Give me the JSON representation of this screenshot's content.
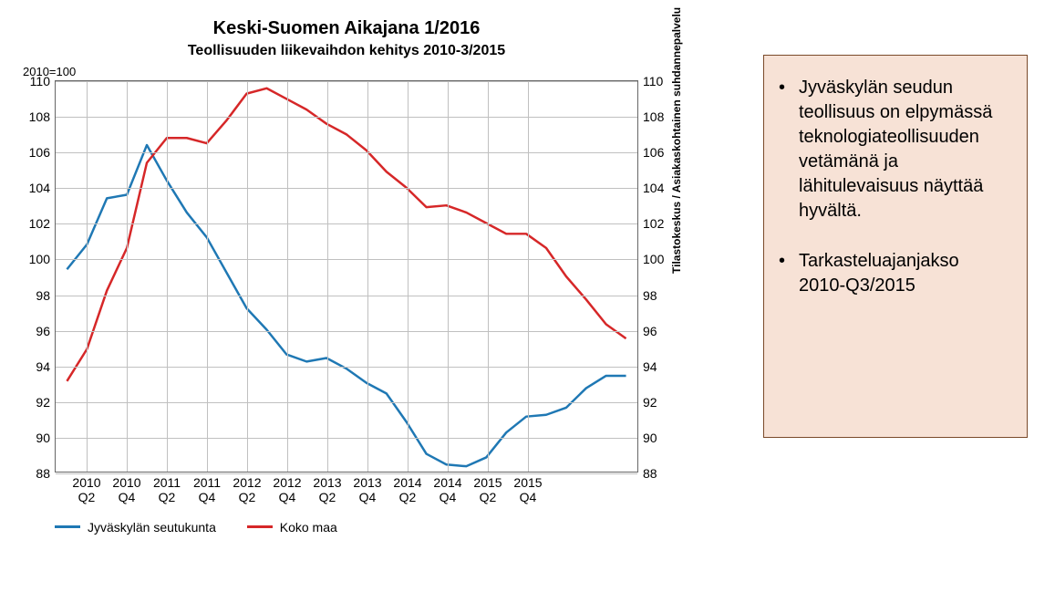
{
  "chart": {
    "title_main": "Keski-Suomen Aikajana 1/2016",
    "title_sub": "Teollisuuden liikevaihdon kehitys 2010-3/2015",
    "baseline_label": "2010=100",
    "type": "line",
    "title_fontsize": 20,
    "subtitle_fontsize": 16,
    "label_fontsize": 14,
    "background_color": "#ffffff",
    "grid_color": "#c0c0c0",
    "border_color": "#666666",
    "ylim": [
      88,
      110
    ],
    "ytick_step": 2,
    "yticks": [
      88,
      90,
      92,
      94,
      96,
      98,
      100,
      102,
      104,
      106,
      108,
      110
    ],
    "xticks": [
      "2010\nQ2",
      "2010\nQ4",
      "2011\nQ2",
      "2011\nQ4",
      "2012\nQ2",
      "2012\nQ4",
      "2013\nQ2",
      "2013\nQ4",
      "2014\nQ2",
      "2014\nQ4",
      "2015\nQ2",
      "2015\nQ4"
    ],
    "x_indices": [
      1,
      3,
      5,
      7,
      9,
      11,
      13,
      15,
      17,
      19,
      21,
      23
    ],
    "x_count": 24,
    "line_width": 2.5,
    "series": [
      {
        "name": "Jyväskylän seutukunta",
        "color": "#1f78b4",
        "values": [
          99.4,
          100.8,
          103.4,
          103.6,
          106.4,
          104.4,
          102.6,
          101.2,
          99.2,
          97.2,
          96.0,
          94.6,
          94.2,
          94.4,
          93.8,
          93.0,
          92.4,
          90.8,
          89.0,
          88.4,
          88.3,
          88.8,
          90.2,
          91.1,
          91.2,
          91.6,
          92.7,
          93.4,
          93.4
        ]
      },
      {
        "name": "Koko maa",
        "color": "#d62728",
        "values": [
          93.1,
          94.9,
          98.2,
          100.6,
          105.4,
          106.8,
          106.8,
          106.5,
          107.8,
          109.3,
          109.6,
          109.0,
          108.4,
          107.6,
          107.0,
          106.1,
          104.9,
          104.0,
          102.9,
          103.0,
          102.6,
          102.0,
          101.4,
          101.4,
          100.6,
          99.0,
          97.7,
          96.3,
          95.5
        ]
      }
    ],
    "legend": {
      "items": [
        "Jyväskylän seutukunta",
        "Koko maa"
      ]
    },
    "source_label": "Tilastokeskus / Asiakaskohtainen suhdannepalvelu"
  },
  "panel": {
    "bg_color": "#f7e2d6",
    "border_color": "#7a4a2a",
    "bullets": [
      "Jyväskylän seudun teollisuus on elpymässä teknologiateollisuuden vetämänä ja lähitulevaisuus näyttää hyvältä.",
      "Tarkasteluajanjakso 2010-Q3/2015"
    ]
  }
}
